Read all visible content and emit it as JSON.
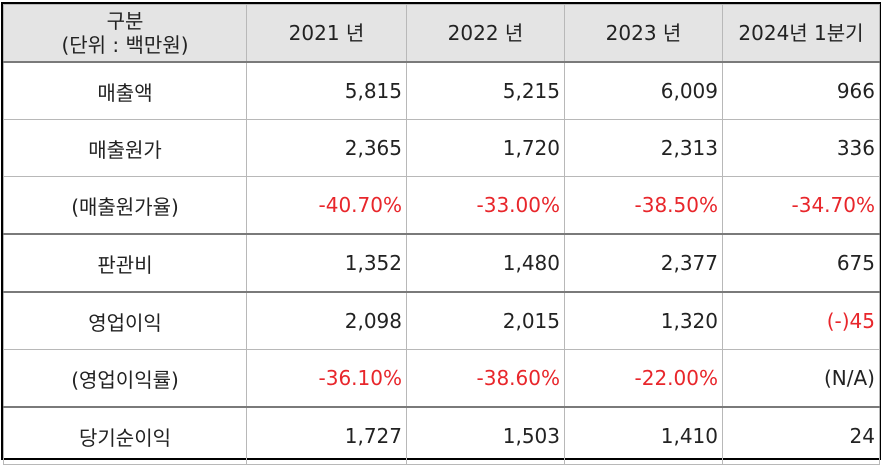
{
  "header": {
    "category_line1": "구분",
    "category_line2": "(단위 : 백만원)",
    "y2021": "2021 년",
    "y2022": "2022 년",
    "y2023": "2023 년",
    "y2024q1": "2024년 1분기"
  },
  "rows": [
    {
      "label": "매출액",
      "values": [
        "5,815",
        "5,215",
        "6,009",
        "966"
      ]
    },
    {
      "label": "매출원가",
      "values": [
        "2,365",
        "1,720",
        "2,313",
        "336"
      ]
    },
    {
      "label": "(매출원가율)",
      "values": [
        "-40.70%",
        "-33.00%",
        "-38.50%",
        "-34.70%"
      ]
    },
    {
      "label": "판관비",
      "values": [
        "1,352",
        "1,480",
        "2,377",
        "675"
      ]
    },
    {
      "label": "영업이익",
      "values": [
        "2,098",
        "2,015",
        "1,320",
        "(-)45"
      ]
    },
    {
      "label": "(영업이익률)",
      "values": [
        "-36.10%",
        "-38.60%",
        "-22.00%",
        "(N/A)"
      ]
    },
    {
      "label": "당기순이익",
      "values": [
        "1,727",
        "1,503",
        "1,410",
        "24"
      ]
    }
  ],
  "colors": {
    "negative": "#e8262b",
    "header_bg": "#e4e4e4"
  }
}
